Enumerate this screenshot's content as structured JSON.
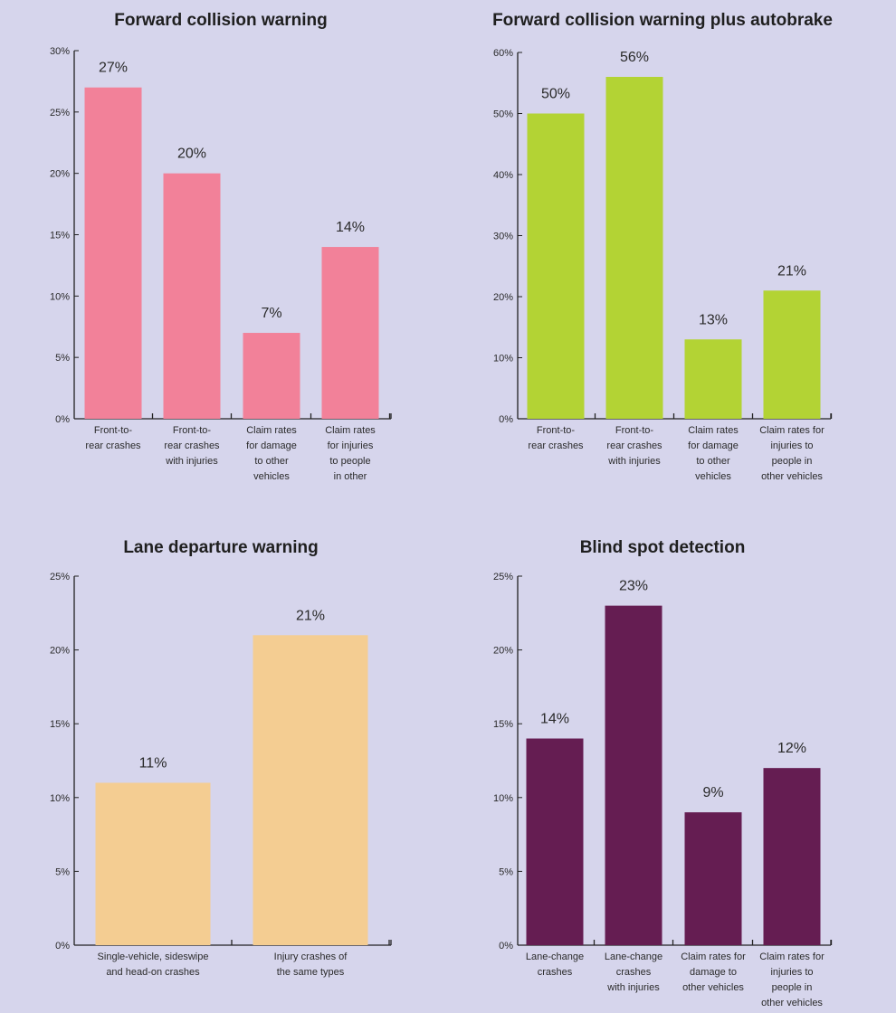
{
  "chart_data": [
    {
      "type": "bar",
      "title": "Forward collision warning",
      "categories": [
        [
          "Front-to-",
          "rear crashes"
        ],
        [
          "Front-to-",
          "rear crashes",
          "with injuries"
        ],
        [
          "Claim rates",
          "for damage",
          "to other",
          "vehicles"
        ],
        [
          "Claim rates",
          "for injuries",
          "to people",
          "in other"
        ]
      ],
      "values": [
        27,
        20,
        7,
        14
      ],
      "data_labels": [
        "27%",
        "20%",
        "7%",
        "14%"
      ],
      "yticks": [
        0,
        5,
        10,
        15,
        20,
        25,
        30
      ],
      "ytick_labels": [
        "0%",
        "5%",
        "10%",
        "15%",
        "20%",
        "25%",
        "30%"
      ],
      "ylim": [
        0,
        30
      ],
      "color": "#f28199",
      "grid": false
    },
    {
      "type": "bar",
      "title": "Forward collision warning plus autobrake",
      "categories": [
        [
          "Front-to-",
          "rear crashes"
        ],
        [
          "Front-to-",
          "rear crashes",
          "with injuries"
        ],
        [
          "Claim rates",
          "for damage",
          "to other",
          "vehicles"
        ],
        [
          "Claim rates for",
          "injuries to",
          "people in",
          "other vehicles"
        ]
      ],
      "values": [
        50,
        56,
        13,
        21
      ],
      "data_labels": [
        "50%",
        "56%",
        "13%",
        "21%"
      ],
      "yticks": [
        0,
        10,
        20,
        30,
        40,
        50,
        60
      ],
      "ytick_labels": [
        "0%",
        "10%",
        "20%",
        "30%",
        "40%",
        "50%",
        "60%"
      ],
      "ylim": [
        0,
        60
      ],
      "color": "#b3d334",
      "grid": false
    },
    {
      "type": "bar",
      "title": "Lane departure warning",
      "categories": [
        [
          "Single-vehicle, sideswipe",
          "and head-on crashes"
        ],
        [
          "Injury crashes of",
          "the same types"
        ]
      ],
      "values": [
        11,
        21
      ],
      "data_labels": [
        "11%",
        "21%"
      ],
      "yticks": [
        0,
        5,
        10,
        15,
        20,
        25
      ],
      "ytick_labels": [
        "0%",
        "5%",
        "10%",
        "15%",
        "20%",
        "25%"
      ],
      "ylim": [
        0,
        25
      ],
      "color": "#f4cd92",
      "grid": false
    },
    {
      "type": "bar",
      "title": "Blind spot detection",
      "categories": [
        [
          "Lane-change",
          "crashes"
        ],
        [
          "Lane-change",
          "crashes",
          "with injuries"
        ],
        [
          "Claim rates for",
          "damage to",
          "other vehicles"
        ],
        [
          "Claim rates for",
          "injuries to",
          "people in",
          "other vehicles"
        ]
      ],
      "values": [
        14,
        23,
        9,
        12
      ],
      "data_labels": [
        "14%",
        "23%",
        "9%",
        "12%"
      ],
      "yticks": [
        0,
        5,
        10,
        15,
        20,
        25
      ],
      "ytick_labels": [
        "0%",
        "5%",
        "10%",
        "15%",
        "20%",
        "25%"
      ],
      "ylim": [
        0,
        25
      ],
      "color": "#651d52",
      "grid": false
    }
  ]
}
